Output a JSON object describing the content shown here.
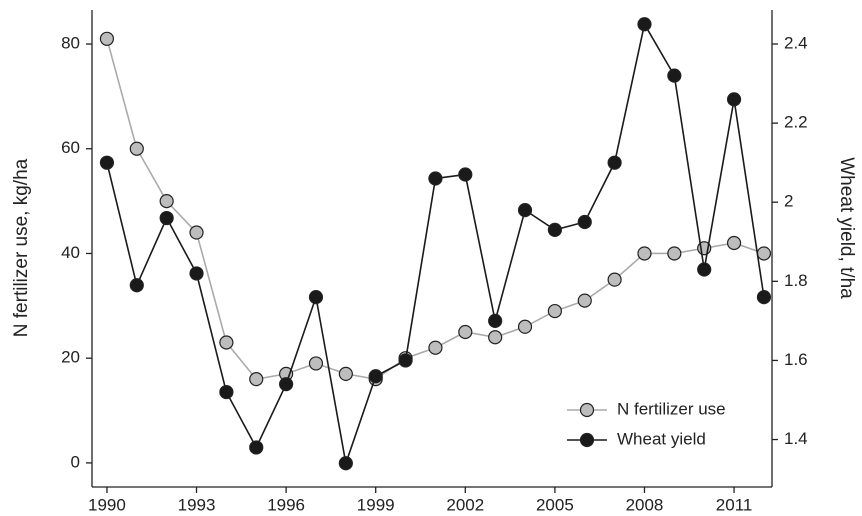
{
  "chart_data": {
    "type": "line",
    "x": [
      1990,
      1991,
      1992,
      1993,
      1994,
      1995,
      1996,
      1997,
      1998,
      1999,
      2000,
      2001,
      2002,
      2003,
      2004,
      2005,
      2006,
      2007,
      2008,
      2009,
      2010,
      2011,
      2012
    ],
    "xlim": [
      1989.5,
      2012.27
    ],
    "xticks": [
      1990,
      1993,
      1996,
      1999,
      2002,
      2005,
      2008,
      2011
    ],
    "ylabel": "N fertilizer use, kg/ha",
    "y2label": "Wheat yield, t/ha",
    "ylim": [
      -4.6,
      86.5
    ],
    "yticks": [
      0,
      20,
      40,
      60,
      80
    ],
    "y2lim": [
      1.28,
      2.486
    ],
    "y2ticks": [
      1.4,
      1.6,
      1.8,
      2,
      2.2,
      2.4
    ],
    "legend": "lower right",
    "series": [
      {
        "name": "N fertilizer use",
        "color": "#bdbdbd",
        "line_color": "#aaaaaa",
        "axis": "y",
        "values": [
          81,
          60,
          50,
          44,
          23,
          16,
          17,
          19,
          17,
          16,
          20,
          22,
          25,
          24,
          26,
          29,
          31,
          35,
          40,
          40,
          41,
          42,
          40
        ]
      },
      {
        "name": "Wheat yield",
        "color": "#1a1a1a",
        "line_color": "#1a1a1a",
        "axis": "y2",
        "values": [
          2.1,
          1.79,
          1.96,
          1.82,
          1.52,
          1.38,
          1.54,
          1.76,
          1.34,
          1.56,
          1.6,
          2.06,
          2.07,
          1.7,
          1.98,
          1.93,
          1.95,
          2.1,
          2.45,
          2.32,
          1.83,
          2.26,
          1.76
        ]
      }
    ]
  }
}
